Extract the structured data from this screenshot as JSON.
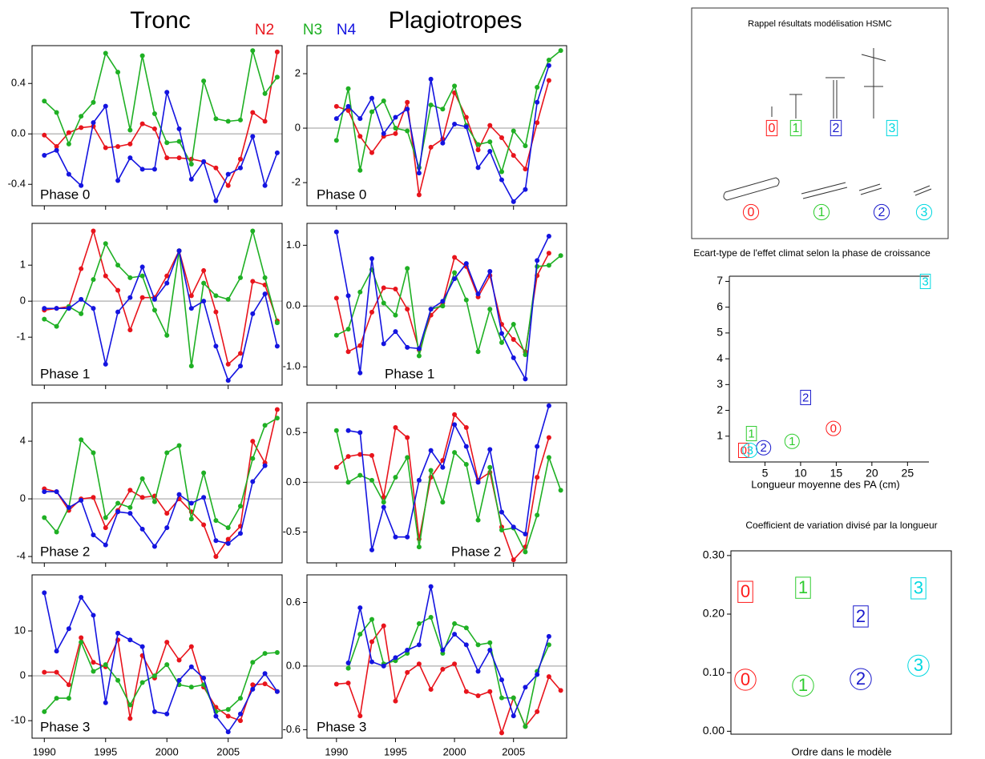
{
  "column_titles": [
    "Tronc",
    "Plagiotropes"
  ],
  "diagram": {
    "title": "Rappel résultats modélisation HSMC"
  },
  "orders": [
    {
      "label": "0",
      "color": "#ff1a1a"
    },
    {
      "label": "1",
      "color": "#2ecc2e"
    },
    {
      "label": "2",
      "color": "#1a1acc"
    },
    {
      "label": "3",
      "color": "#00d8e0"
    }
  ],
  "chart_data": [
    {
      "type": "line",
      "annotation": "Phase 0",
      "x": [
        1990,
        1991,
        1992,
        1993,
        1994,
        1995,
        1996,
        1997,
        1998,
        1999,
        2000,
        2001,
        2002,
        2003,
        2004,
        2005,
        2006,
        2007,
        2008,
        2009
      ],
      "xlim": [
        1989,
        2009.4
      ],
      "xticks": [
        1990,
        1995,
        2000,
        2005
      ],
      "show_xtick_labels": false,
      "ylim": [
        -0.57,
        0.7
      ],
      "yticks": [
        -0.4,
        {
          "value": 0,
          "label": "0.0"
        },
        0.4
      ],
      "series": [
        {
          "name": "N2",
          "color": "#e8141c",
          "values": [
            -0.01,
            -0.1,
            0.01,
            0.05,
            0.06,
            -0.11,
            -0.1,
            -0.08,
            0.08,
            0.04,
            -0.19,
            -0.19,
            -0.2,
            -0.22,
            -0.27,
            -0.41,
            -0.2,
            0.17,
            0.1,
            0.65
          ]
        },
        {
          "name": "N3",
          "color": "#1fb024",
          "values": [
            0.26,
            0.17,
            -0.08,
            0.14,
            0.25,
            0.64,
            0.49,
            0.03,
            0.62,
            0.16,
            -0.07,
            -0.06,
            -0.24,
            0.42,
            0.12,
            0.1,
            0.11,
            0.66,
            0.32,
            0.45
          ]
        },
        {
          "name": "N4",
          "color": "#1414e0",
          "values": [
            -0.17,
            -0.13,
            -0.32,
            -0.41,
            0.09,
            0.22,
            -0.37,
            -0.19,
            -0.28,
            -0.28,
            0.33,
            0.04,
            -0.36,
            -0.22,
            -0.53,
            -0.32,
            -0.27,
            -0.02,
            -0.41,
            -0.15
          ]
        }
      ]
    },
    {
      "type": "line",
      "annotation": "Phase 1",
      "x": [
        1990,
        1991,
        1992,
        1993,
        1994,
        1995,
        1996,
        1997,
        1998,
        1999,
        2000,
        2001,
        2002,
        2003,
        2004,
        2005,
        2006,
        2007,
        2008,
        2009
      ],
      "xlim": [
        1989,
        2009.4
      ],
      "xticks": [
        1990,
        1995,
        2000,
        2005
      ],
      "show_xtick_labels": false,
      "ylim": [
        -2.33,
        2.16
      ],
      "yticks": [
        -1,
        0,
        1
      ],
      "series": [
        {
          "color": "#e8141c",
          "values": [
            -0.25,
            -0.2,
            -0.15,
            0.9,
            1.95,
            0.7,
            0.3,
            -0.8,
            0.1,
            0.1,
            0.7,
            1.4,
            0.15,
            0.85,
            -0.3,
            -1.75,
            -1.45,
            0.55,
            0.45,
            -0.55
          ]
        },
        {
          "color": "#1fb024",
          "values": [
            -0.5,
            -0.7,
            -0.15,
            -0.35,
            0.6,
            1.6,
            1.0,
            0.65,
            0.7,
            -0.25,
            -0.95,
            1.4,
            -1.8,
            0.5,
            0.15,
            0.05,
            0.65,
            1.95,
            0.65,
            -0.6
          ]
        },
        {
          "color": "#1414e0",
          "values": [
            -0.2,
            -0.2,
            -0.2,
            0.05,
            -0.2,
            -1.75,
            -0.3,
            0.1,
            0.95,
            0.05,
            0.5,
            1.4,
            -0.2,
            0.0,
            -1.25,
            -2.2,
            -1.8,
            -0.35,
            0.2,
            -1.25
          ]
        }
      ]
    },
    {
      "type": "line",
      "annotation": "Phase 2",
      "x": [
        1990,
        1991,
        1992,
        1993,
        1994,
        1995,
        1996,
        1997,
        1998,
        1999,
        2000,
        2001,
        2002,
        2003,
        2004,
        2005,
        2006,
        2007,
        2008,
        2009
      ],
      "xlim": [
        1989,
        2009.4
      ],
      "xticks": [
        1990,
        1995,
        2000,
        2005
      ],
      "show_xtick_labels": false,
      "ylim": [
        -4.44,
        6.67
      ],
      "yticks": [
        -4,
        0,
        4
      ],
      "series": [
        {
          "color": "#e8141c",
          "values": [
            0.7,
            0.5,
            -0.8,
            0,
            0.1,
            -2,
            -0.8,
            0.6,
            0.1,
            0.2,
            -1,
            0,
            -0.9,
            -1.8,
            -4,
            -2.8,
            -1.9,
            4,
            2.5,
            6.2
          ]
        },
        {
          "color": "#1fb024",
          "values": [
            -1.3,
            -2.3,
            -0.6,
            4.1,
            3.2,
            -1.3,
            -0.3,
            -0.6,
            1.4,
            -0.2,
            3.2,
            3.7,
            -1.4,
            1.8,
            -1.5,
            -2,
            -0.5,
            2.8,
            5.1,
            5.6
          ]
        },
        {
          "color": "#1414e0",
          "values": [
            0.5,
            0.5,
            -0.6,
            -0.1,
            -2.5,
            -3.2,
            -0.9,
            -1,
            -2.1,
            -3.3,
            -2,
            0.3,
            -0.3,
            0.1,
            -2.9,
            -3.1,
            -2.4,
            1.2,
            2.3,
            null
          ]
        }
      ]
    },
    {
      "type": "line",
      "annotation": "Phase 3",
      "x": [
        1990,
        1991,
        1992,
        1993,
        1994,
        1995,
        1996,
        1997,
        1998,
        1999,
        2000,
        2001,
        2002,
        2003,
        2004,
        2005,
        2006,
        2007,
        2008,
        2009
      ],
      "xlim": [
        1989,
        2009.4
      ],
      "xticks": [
        1990,
        1995,
        2000,
        2005
      ],
      "show_xtick_labels": true,
      "ylim": [
        -13.9,
        22.5
      ],
      "yticks": [
        -10,
        0,
        10
      ],
      "series": [
        {
          "color": "#e8141c",
          "values": [
            0.8,
            0.8,
            -2,
            8.5,
            3,
            2,
            8,
            -9.5,
            4.5,
            -0.5,
            7.5,
            3.5,
            6.5,
            -2.5,
            -7,
            -9,
            -10,
            -2,
            -1.8,
            -3.5
          ]
        },
        {
          "color": "#1fb024",
          "values": [
            -8,
            -5,
            -5,
            7.5,
            1,
            2.5,
            -1,
            -6.5,
            -1.5,
            0,
            2.5,
            -2,
            -2.5,
            -2,
            -8,
            -7.5,
            -5,
            3,
            5,
            5.2
          ]
        },
        {
          "color": "#1414e0",
          "values": [
            18.5,
            5.5,
            10.5,
            17.5,
            13.5,
            -6,
            9.5,
            8,
            6.5,
            -8,
            -8.5,
            -1,
            2,
            -0.5,
            -9,
            -12.5,
            -8.5,
            -3,
            0.5,
            -3.5
          ]
        }
      ]
    },
    {
      "type": "line",
      "annotation": "Phase 0",
      "x": [
        1990,
        1991,
        1992,
        1993,
        1994,
        1995,
        1996,
        1997,
        1998,
        1999,
        2000,
        2001,
        2002,
        2003,
        2004,
        2005,
        2006,
        2007,
        2008,
        2009
      ],
      "xlim": [
        1987.5,
        2009.5
      ],
      "xticks": [
        1990,
        1995,
        2000,
        2005
      ],
      "show_xtick_labels": false,
      "ylim": [
        -2.85,
        3.03
      ],
      "yticks": [
        -2,
        0,
        2
      ],
      "series": [
        {
          "color": "#e8141c",
          "values": [
            0.8,
            0.65,
            -0.3,
            -0.9,
            -0.3,
            -0.2,
            0.95,
            -2.45,
            -0.7,
            -0.4,
            1.3,
            0.4,
            -0.8,
            0.1,
            -0.35,
            -1.0,
            -1.5,
            0.2,
            1.75,
            null
          ]
        },
        {
          "color": "#1fb024",
          "values": [
            -0.45,
            1.45,
            -1.55,
            0.6,
            1.0,
            0.0,
            -0.1,
            -1.45,
            0.85,
            0.7,
            1.55,
            0.1,
            -0.6,
            -0.5,
            -1.6,
            -0.1,
            -0.65,
            1.5,
            2.5,
            2.85
          ]
        },
        {
          "color": "#1414e0",
          "values": [
            0.35,
            0.8,
            0.35,
            1.1,
            -0.2,
            0.4,
            0.7,
            -1.65,
            1.8,
            -0.55,
            0.15,
            0.05,
            -1.45,
            -0.85,
            -1.9,
            -2.7,
            -2.25,
            0.95,
            2.3,
            null
          ]
        }
      ]
    },
    {
      "type": "line",
      "annotation": "Phase 1",
      "x": [
        1990,
        1991,
        1992,
        1993,
        1994,
        1995,
        1996,
        1997,
        1998,
        1999,
        2000,
        2001,
        2002,
        2003,
        2004,
        2005,
        2006,
        2007,
        2008,
        2009
      ],
      "xlim": [
        1987.5,
        2009.5
      ],
      "xticks": [
        1990,
        1995,
        2000,
        2005
      ],
      "show_xtick_labels": false,
      "ylim": [
        -1.3,
        1.36
      ],
      "yticks": [
        {
          "value": -1,
          "label": "-1.0"
        },
        {
          "value": 0,
          "label": "0.0"
        },
        {
          "value": 1,
          "label": "1.0"
        }
      ],
      "series": [
        {
          "color": "#e8141c",
          "values": [
            0.13,
            -0.75,
            -0.65,
            -0.1,
            0.3,
            0.28,
            -0.05,
            -0.72,
            -0.15,
            0.05,
            0.8,
            0.65,
            0.15,
            0.5,
            -0.3,
            -0.55,
            -0.75,
            0.5,
            0.87,
            null
          ]
        },
        {
          "color": "#1fb024",
          "values": [
            -0.48,
            -0.38,
            0.23,
            0.6,
            0.05,
            -0.15,
            0.62,
            -0.82,
            -0.05,
            0,
            0.55,
            0.1,
            -0.75,
            -0.05,
            -0.6,
            -0.3,
            -0.8,
            0.65,
            0.67,
            0.83
          ]
        },
        {
          "color": "#1414e0",
          "values": [
            1.22,
            0.17,
            -1.1,
            0.78,
            -0.62,
            -0.42,
            -0.68,
            -0.7,
            -0.05,
            0.08,
            0.45,
            0.7,
            0.2,
            0.57,
            -0.45,
            -0.85,
            -1.2,
            0.75,
            1.15,
            null
          ]
        }
      ]
    },
    {
      "type": "line",
      "annotation": "Phase 2",
      "x": [
        1990,
        1991,
        1992,
        1993,
        1994,
        1995,
        1996,
        1997,
        1998,
        1999,
        2000,
        2001,
        2002,
        2003,
        2004,
        2005,
        2006,
        2007,
        2008,
        2009
      ],
      "xlim": [
        1987.5,
        2009.5
      ],
      "xticks": [
        1990,
        1995,
        2000,
        2005
      ],
      "show_xtick_labels": false,
      "ylim": [
        -0.81,
        0.8
      ],
      "yticks": [
        -0.5,
        {
          "value": 0,
          "label": "0.0"
        },
        0.5
      ],
      "series": [
        {
          "color": "#e8141c",
          "values": [
            0.15,
            0.26,
            0.28,
            0.27,
            -0.15,
            0.55,
            0.45,
            -0.57,
            0.05,
            0.22,
            0.68,
            0.55,
            0.02,
            0.1,
            -0.45,
            -0.78,
            -0.65,
            0.05,
            0.45,
            null
          ]
        },
        {
          "color": "#1fb024",
          "values": [
            0.52,
            0,
            0.07,
            0.02,
            -0.2,
            0.05,
            0.25,
            -0.65,
            0.12,
            -0.2,
            0.3,
            0.18,
            -0.38,
            0.15,
            -0.48,
            -0.46,
            -0.7,
            -0.33,
            0.25,
            -0.08
          ]
        },
        {
          "color": "#1414e0",
          "values": [
            null,
            0.52,
            0.5,
            -0.68,
            -0.25,
            -0.55,
            -0.55,
            0.02,
            0.32,
            0.15,
            0.58,
            0.36,
            0.0,
            0.33,
            -0.3,
            -0.45,
            -0.52,
            0.36,
            0.77,
            null
          ]
        }
      ]
    },
    {
      "type": "line",
      "annotation": "Phase 3",
      "x": [
        1990,
        1991,
        1992,
        1993,
        1994,
        1995,
        1996,
        1997,
        1998,
        1999,
        2000,
        2001,
        2002,
        2003,
        2004,
        2005,
        2006,
        2007,
        2008,
        2009
      ],
      "xlim": [
        1987.5,
        2009.5
      ],
      "xticks": [
        1990,
        1995,
        2000,
        2005
      ],
      "show_xtick_labels": true,
      "ylim": [
        -0.68,
        0.86
      ],
      "yticks": [
        -0.6,
        {
          "value": 0,
          "label": "0.0"
        },
        0.6
      ],
      "series": [
        {
          "color": "#e8141c",
          "values": [
            -0.17,
            -0.16,
            -0.47,
            0.23,
            0.38,
            -0.33,
            -0.06,
            0.02,
            -0.22,
            -0.03,
            0.02,
            -0.24,
            -0.28,
            -0.24,
            -0.63,
            -0.3,
            -0.57,
            -0.43,
            -0.1,
            -0.23
          ]
        },
        {
          "color": "#1fb024",
          "values": [
            null,
            -0.02,
            0.3,
            0.44,
            0.02,
            0.05,
            0.12,
            0.4,
            0.46,
            0.12,
            0.4,
            0.36,
            0.2,
            0.22,
            -0.3,
            -0.3,
            -0.57,
            -0.05,
            0.2,
            null
          ]
        },
        {
          "color": "#1414e0",
          "values": [
            null,
            0.03,
            0.55,
            0.04,
            0.0,
            0.08,
            0.15,
            0.2,
            0.75,
            0.15,
            0.3,
            0.2,
            -0.05,
            0.15,
            -0.13,
            -0.47,
            -0.2,
            -0.08,
            0.28,
            null
          ]
        }
      ]
    },
    {
      "type": "scatter",
      "title": "Ecart-type de l'effet climat selon la phase de croissance",
      "x_label": "Longueur moyenne des PA (cm)",
      "xlim": [
        0,
        28
      ],
      "xticks": [
        5,
        10,
        15,
        20,
        25
      ],
      "ylim": [
        0,
        7.2
      ],
      "yticks": [
        1,
        2,
        3,
        4,
        5,
        6,
        7
      ],
      "frame": false,
      "series": [
        {
          "marker": "box",
          "x": [
            2.0,
            3.1,
            10.7,
            27.5
          ],
          "values": [
            0.45,
            1.1,
            2.5,
            7.0
          ]
        },
        {
          "marker": "circle",
          "x": [
            14.6,
            8.8,
            4.8,
            2.9
          ],
          "values": [
            1.3,
            0.8,
            0.55,
            0.45
          ]
        }
      ]
    },
    {
      "type": "scatter",
      "title": "Coefficient de variation divisé par la longueur",
      "x_label": "Ordre dans le modèle",
      "xlim": [
        -0.25,
        3.57
      ],
      "ylim": [
        -0.005,
        0.308
      ],
      "frame": true,
      "yticks": [
        {
          "value": 0,
          "label": "0.00"
        },
        {
          "value": 0.1,
          "label": "0.10"
        },
        {
          "value": 0.2,
          "label": "0.20"
        },
        {
          "value": 0.3,
          "label": "0.30"
        }
      ],
      "series": [
        {
          "marker": "box",
          "x": [
            0,
            1,
            2,
            3
          ],
          "values": [
            0.238,
            0.245,
            0.196,
            0.244
          ]
        },
        {
          "marker": "circle",
          "x": [
            0,
            1,
            2,
            3
          ],
          "values": [
            0.088,
            0.078,
            0.089,
            0.112
          ]
        }
      ]
    }
  ]
}
